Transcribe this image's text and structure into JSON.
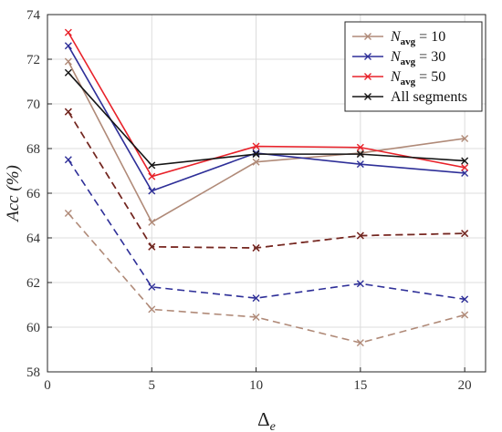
{
  "chart_data": {
    "type": "line",
    "title": "",
    "xlabel": "Δ",
    "xlabel_subscript": "e",
    "ylabel": "Acc (%)",
    "xlim": [
      0,
      21
    ],
    "ylim": [
      58,
      74
    ],
    "xticks": [
      0,
      5,
      10,
      15,
      20
    ],
    "yticks": [
      58,
      60,
      62,
      64,
      66,
      68,
      70,
      72,
      74
    ],
    "grid": true,
    "legend_position": "top-right",
    "x": [
      1,
      5,
      10,
      15,
      20
    ],
    "series": [
      {
        "legend": "N",
        "legend_sub": "avg",
        "legend_rest": " = 10",
        "color": "#b08a78",
        "style": "solid",
        "values": [
          71.9,
          64.7,
          67.4,
          67.8,
          68.45
        ]
      },
      {
        "legend": "N",
        "legend_sub": "avg",
        "legend_rest": " = 30",
        "color": "#2e2f98",
        "style": "solid",
        "values": [
          72.6,
          66.1,
          67.8,
          67.3,
          66.9
        ]
      },
      {
        "legend": "N",
        "legend_sub": "avg",
        "legend_rest": " = 50",
        "color": "#e8222a",
        "style": "solid",
        "values": [
          73.2,
          66.75,
          68.1,
          68.05,
          67.15
        ]
      },
      {
        "legend": "All segments",
        "color": "#151515",
        "style": "solid",
        "values": [
          71.4,
          67.25,
          67.75,
          67.75,
          67.45
        ]
      },
      {
        "color": "#b08a78",
        "style": "dashed",
        "values": [
          65.1,
          60.8,
          60.45,
          59.3,
          60.55
        ]
      },
      {
        "color": "#2e2f98",
        "style": "dashed",
        "values": [
          67.5,
          61.8,
          61.3,
          61.95,
          61.25
        ]
      },
      {
        "color": "#e8222a",
        "style": "dashed",
        "values": [
          69.65,
          63.6,
          63.55,
          64.1,
          64.2
        ]
      },
      {
        "color": "#6b2a22",
        "style": "dashed",
        "values": [
          69.65,
          63.6,
          63.55,
          64.1,
          64.2
        ]
      }
    ]
  }
}
